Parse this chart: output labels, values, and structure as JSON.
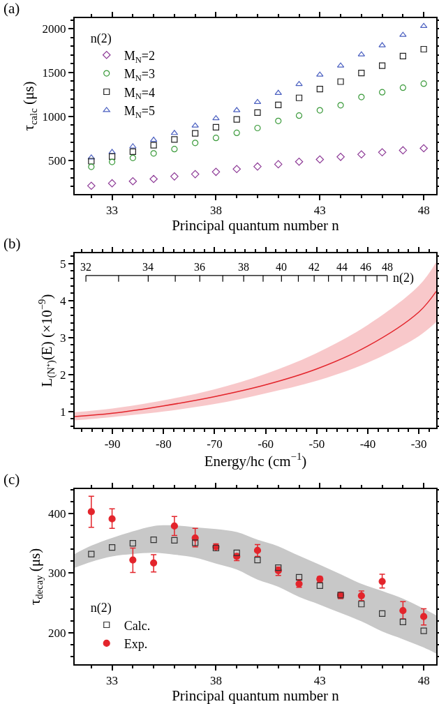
{
  "chart_data": [
    {
      "type": "scatter",
      "title": "(a)",
      "xlabel": "Principal quantum number n",
      "ylabel": "τ$_{calc}$ (μs)",
      "legend_title": "n(2)",
      "legend": "top left",
      "x": [
        32,
        33,
        34,
        35,
        36,
        37,
        38,
        39,
        40,
        41,
        42,
        43,
        44,
        45,
        46,
        47,
        48
      ],
      "xlim": [
        31.2,
        48.6
      ],
      "xticks": [
        33,
        38,
        43,
        48
      ],
      "ylim": [
        115,
        2120
      ],
      "yticks": [
        500,
        1000,
        1500,
        2000
      ],
      "series": [
        {
          "name": "M$_{N}$=2",
          "color": "#8e3b97",
          "marker": "diamond",
          "values": [
            208,
            237,
            260,
            286,
            315,
            341,
            367,
            399,
            428,
            454,
            483,
            509,
            538,
            566,
            590,
            613,
            636
          ]
        },
        {
          "name": "M$_{N}$=3",
          "color": "#3a9a3a",
          "marker": "circle",
          "values": [
            425,
            480,
            526,
            578,
            627,
            697,
            754,
            812,
            867,
            948,
            1009,
            1069,
            1127,
            1220,
            1275,
            1327,
            1373
          ]
        },
        {
          "name": "M$_{N}$=4",
          "color": "#222222",
          "marker": "square",
          "values": [
            489,
            541,
            598,
            671,
            737,
            806,
            876,
            965,
            1043,
            1130,
            1211,
            1312,
            1396,
            1494,
            1578,
            1688,
            1766
          ]
        },
        {
          "name": "M$_{N}$=5",
          "color": "#4a5fc0",
          "marker": "triangle",
          "values": [
            529,
            592,
            656,
            731,
            809,
            893,
            977,
            1069,
            1162,
            1266,
            1367,
            1474,
            1578,
            1705,
            1809,
            1928,
            2029
          ]
        }
      ]
    },
    {
      "type": "line",
      "title": "(b)",
      "xlabel": "Energy/hc (cm$^{−1}$)",
      "ylabel": "L$_{(N⁺)}$(E) (×10$^{−9}$)",
      "xlim": [
        -97.4,
        -26.6
      ],
      "xticks": [
        -90,
        -80,
        -70,
        -60,
        -50,
        -40,
        -30
      ],
      "ylim": [
        0.56,
        5.28
      ],
      "yticks": [
        1,
        2,
        3,
        4,
        5
      ],
      "annotations": [
        {
          "text": "32",
          "x": -95.2,
          "y": 4.68
        },
        {
          "text": "34",
          "x": -83.0,
          "y": 4.68
        },
        {
          "text": "36",
          "x": -72.9,
          "y": 4.68
        },
        {
          "text": "38",
          "x": -64.3,
          "y": 4.68
        },
        {
          "text": "40",
          "x": -56.9,
          "y": 4.68
        },
        {
          "text": "42",
          "x": -50.5,
          "y": 4.68
        },
        {
          "text": "44",
          "x": -45.1,
          "y": 4.68
        },
        {
          "text": "46",
          "x": -40.4,
          "y": 4.68
        },
        {
          "text": "48",
          "x": -36.2,
          "y": 4.68
        }
      ],
      "series": [
        {
          "name": "n(2)",
          "color": "#000000",
          "marker": "none",
          "x": [
            -95.2,
            -88.8,
            -83.0,
            -77.7,
            -72.9,
            -68.4,
            -64.3,
            -60.5,
            -56.9,
            -53.6,
            -50.5,
            -47.7,
            -45.1,
            -42.7,
            -40.4,
            -38.2,
            -36.2
          ],
          "values": [
            4.68,
            4.68,
            4.68,
            4.68,
            4.68,
            4.68,
            4.68,
            4.68,
            4.68,
            4.68,
            4.68,
            4.68,
            4.68,
            4.68,
            4.68,
            4.68,
            4.68
          ],
          "errors": [
            [
              4.51,
              4.68
            ],
            [
              4.51,
              4.68
            ],
            [
              4.51,
              4.68
            ],
            [
              4.51,
              4.68
            ],
            [
              4.51,
              4.68
            ],
            [
              4.51,
              4.68
            ],
            [
              4.51,
              4.68
            ],
            [
              4.51,
              4.68
            ],
            [
              4.51,
              4.68
            ],
            [
              4.51,
              4.68
            ],
            [
              4.51,
              4.68
            ],
            [
              4.51,
              4.68
            ],
            [
              4.51,
              4.68
            ],
            [
              4.51,
              4.68
            ],
            [
              4.51,
              4.68
            ],
            [
              4.51,
              4.68
            ],
            [
              4.51,
              4.68
            ]
          ]
        },
        {
          "color": "#e3242b",
          "x": [
            -97.4,
            -90,
            -80,
            -70,
            -60,
            -50,
            -40,
            -30,
            -26.6
          ],
          "values": [
            0.86,
            0.95,
            1.15,
            1.4,
            1.72,
            2.15,
            2.77,
            3.69,
            4.25
          ],
          "lower": [
            0.76,
            0.85,
            1.0,
            1.2,
            1.49,
            1.83,
            2.32,
            3.04,
            3.42
          ],
          "upper": [
            0.98,
            1.08,
            1.3,
            1.6,
            2.02,
            2.58,
            3.34,
            4.4,
            5.04
          ]
        }
      ]
    },
    {
      "type": "scatter",
      "title": "(c)",
      "xlabel": "Principal quantum number n",
      "ylabel": "τ$_{decay}$ (μs)",
      "legend_title": "n(2)",
      "legend": "bottom left",
      "x": [
        32,
        33,
        34,
        35,
        36,
        37,
        38,
        39,
        40,
        41,
        42,
        43,
        44,
        45,
        46,
        47,
        48
      ],
      "xlim": [
        31.2,
        48.6
      ],
      "xticks": [
        33,
        38,
        43,
        48
      ],
      "ylim": [
        147,
        441
      ],
      "yticks": [
        200,
        300,
        400
      ],
      "series": [
        {
          "color": "#c8c8c8",
          "values": [
            null,
            null,
            null,
            null,
            null,
            null,
            null,
            null,
            null,
            null,
            null,
            null,
            null,
            null,
            null,
            null,
            null,
            null,
            null
          ],
          "x": [
            31.2,
            32,
            33,
            34,
            35,
            36,
            37,
            38,
            39,
            40,
            41,
            42,
            43,
            44,
            45,
            46,
            47,
            48,
            48.6
          ],
          "lower": [
            309,
            319,
            328,
            332,
            334,
            331,
            326,
            316,
            306,
            289,
            277,
            260,
            247,
            233,
            219,
            202,
            189,
            175,
            165
          ],
          "upper": [
            332,
            346,
            359,
            370,
            379,
            380,
            377,
            374,
            369,
            356,
            345,
            329,
            314,
            298,
            282,
            270,
            257,
            240,
            229
          ]
        },
        {
          "name": "Calc.",
          "color": "#333333",
          "marker": "square",
          "values": [
            332,
            343,
            350,
            356,
            355,
            351,
            342,
            334,
            322,
            309,
            293,
            279,
            263,
            248,
            232,
            218,
            203
          ]
        },
        {
          "name": "Exp.",
          "color": "#e3242b",
          "marker": "circle",
          "values": [
            403,
            391,
            322,
            317,
            379,
            359,
            344,
            328,
            338,
            304,
            282,
            290,
            263,
            262,
            286,
            237,
            227
          ],
          "errors": [
            [
              377,
              429
            ],
            [
              375,
              408
            ],
            [
              301,
              342
            ],
            [
              302,
              331
            ],
            [
              363,
              395
            ],
            [
              344,
              375
            ],
            [
              342,
              349
            ],
            [
              321,
              332
            ],
            [
              328,
              348
            ],
            [
              296,
              310
            ],
            [
              276,
              289
            ],
            [
              285,
              294
            ],
            [
              257,
              267
            ],
            [
              254,
              270
            ],
            [
              275,
              298
            ],
            [
              223,
              252
            ],
            [
              213,
              240
            ]
          ]
        }
      ]
    }
  ]
}
